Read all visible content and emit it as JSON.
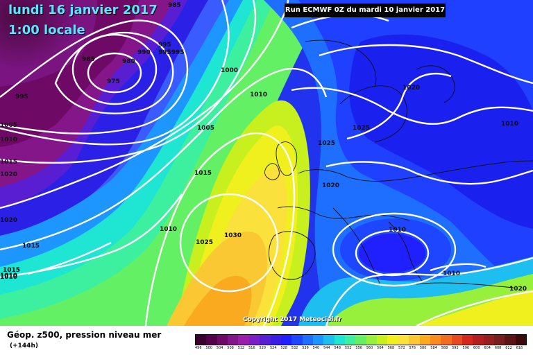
{
  "header": {
    "date_title": "lundi 16 janvier 2017",
    "time_title": "1:00 locale",
    "run_info": "Run ECMWF 0Z du mardi 10 janvier 2017"
  },
  "footer": {
    "copyright": "Copyright 2017 Meteociel.fr",
    "legend_title": "Géop. z500, pression niveau mer",
    "legend_subtitle": "(+144h)"
  },
  "map": {
    "pressure_labels": [
      {
        "value": "990"
      },
      {
        "value": "985"
      },
      {
        "value": "985"
      },
      {
        "value": "980"
      },
      {
        "value": "975"
      },
      {
        "value": "990"
      },
      {
        "value": "995"
      },
      {
        "value": "995995"
      },
      {
        "value": "995"
      },
      {
        "value": "1000"
      },
      {
        "value": "1005"
      },
      {
        "value": "1010"
      },
      {
        "value": "1005"
      },
      {
        "value": "1010"
      },
      {
        "value": "1015"
      },
      {
        "value": "1020"
      },
      {
        "value": "1015"
      },
      {
        "value": "1015"
      },
      {
        "value": "1010"
      },
      {
        "value": "1020"
      },
      {
        "value": "1010"
      },
      {
        "value": "1025"
      },
      {
        "value": "1030"
      },
      {
        "value": "1015"
      },
      {
        "value": "1010"
      },
      {
        "value": "1025"
      },
      {
        "value": "1025"
      },
      {
        "value": "1020"
      },
      {
        "value": "1020"
      },
      {
        "value": "1010"
      },
      {
        "value": "1010"
      },
      {
        "value": "1010"
      },
      {
        "value": "1020"
      }
    ]
  },
  "legend": {
    "scale": [
      {
        "label": "496",
        "color": "#3a0030"
      },
      {
        "label": "500",
        "color": "#55004a"
      },
      {
        "label": "504",
        "color": "#6e0a66"
      },
      {
        "label": "508",
        "color": "#84168a"
      },
      {
        "label": "512",
        "color": "#9a1eaa"
      },
      {
        "label": "516",
        "color": "#7c1ec6"
      },
      {
        "label": "520",
        "color": "#5a1ed2"
      },
      {
        "label": "524",
        "color": "#3a1ee6"
      },
      {
        "label": "528",
        "color": "#2020ff"
      },
      {
        "label": "532",
        "color": "#1e46ff"
      },
      {
        "label": "536",
        "color": "#1e6eff"
      },
      {
        "label": "540",
        "color": "#1e96ff"
      },
      {
        "label": "544",
        "color": "#1ebef0"
      },
      {
        "label": "548",
        "color": "#1ee6d2"
      },
      {
        "label": "552",
        "color": "#3cf0a0"
      },
      {
        "label": "556",
        "color": "#64f064"
      },
      {
        "label": "560",
        "color": "#96f03c"
      },
      {
        "label": "564",
        "color": "#c8f01e"
      },
      {
        "label": "568",
        "color": "#f0f01e"
      },
      {
        "label": "572",
        "color": "#fae13c"
      },
      {
        "label": "576",
        "color": "#fac832"
      },
      {
        "label": "580",
        "color": "#faaa1e"
      },
      {
        "label": "584",
        "color": "#fa8c1e"
      },
      {
        "label": "588",
        "color": "#f06e1e"
      },
      {
        "label": "592",
        "color": "#e64b1e"
      },
      {
        "label": "596",
        "color": "#d2281e"
      },
      {
        "label": "600",
        "color": "#b41e1e"
      },
      {
        "label": "604",
        "color": "#961e1e"
      },
      {
        "label": "608",
        "color": "#781e1e"
      },
      {
        "label": "612",
        "color": "#5a1414"
      },
      {
        "label": "616",
        "color": "#3c0a0a"
      }
    ]
  }
}
